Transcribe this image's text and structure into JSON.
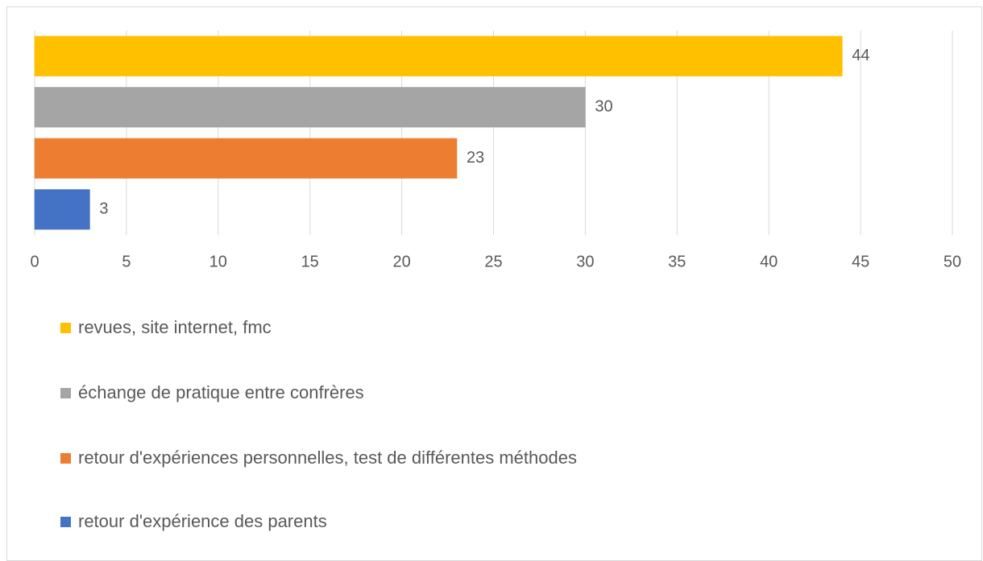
{
  "chart_data": {
    "type": "bar",
    "orientation": "horizontal",
    "series": [
      {
        "name": "revues, site internet, fmc",
        "color": "#ffc000",
        "values": [
          44
        ]
      },
      {
        "name": "échange de pratique entre confrères",
        "color": "#a5a5a5",
        "values": [
          30
        ]
      },
      {
        "name": "retour d'expériences personnelles, test de différentes méthodes",
        "color": "#ed7d31",
        "values": [
          23
        ]
      },
      {
        "name": "retour d'expérience des parents",
        "color": "#4472c4",
        "values": [
          3
        ]
      }
    ],
    "xlim": [
      0,
      50
    ],
    "xticks": [
      0,
      5,
      10,
      15,
      20,
      25,
      30,
      35,
      40,
      45,
      50
    ],
    "grid": true,
    "legend": "bottom"
  }
}
